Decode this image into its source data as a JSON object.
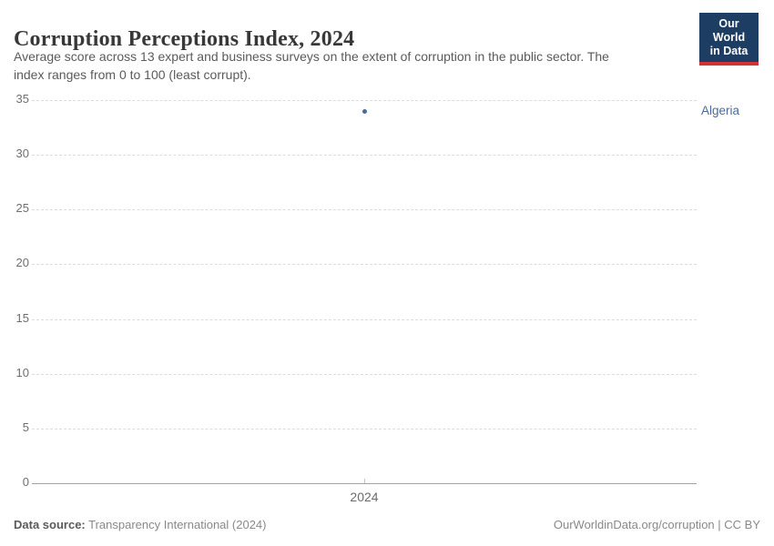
{
  "header": {
    "title": "Corruption Perceptions Index, 2024",
    "subtitle_line1": "Average score across 13 expert and business surveys on the extent of corruption in the public sector. The",
    "subtitle_line2": "index ranges from 0 to 100 (least corrupt).",
    "logo": {
      "line1": "Our World",
      "line2": "in Data",
      "bg_color": "#1d3d63",
      "accent_color": "#d0342c"
    }
  },
  "chart_data": {
    "type": "scatter",
    "title": "Corruption Perceptions Index, 2024",
    "x": [
      2024
    ],
    "series": [
      {
        "name": "Algeria",
        "values": [
          34
        ],
        "color": "#4c6a9c"
      }
    ],
    "xlabel": "",
    "ylabel": "",
    "ylim": [
      0,
      35
    ],
    "yticks": [
      0,
      5,
      10,
      15,
      20,
      25,
      30,
      35
    ],
    "xticks": [
      "2024"
    ],
    "grid": "horizontal-dashed",
    "legend_position": "right-of-point"
  },
  "footer": {
    "source_label": "Data source:",
    "source_value": "Transparency International (2024)",
    "attribution": "OurWorldinData.org/corruption | CC BY"
  }
}
